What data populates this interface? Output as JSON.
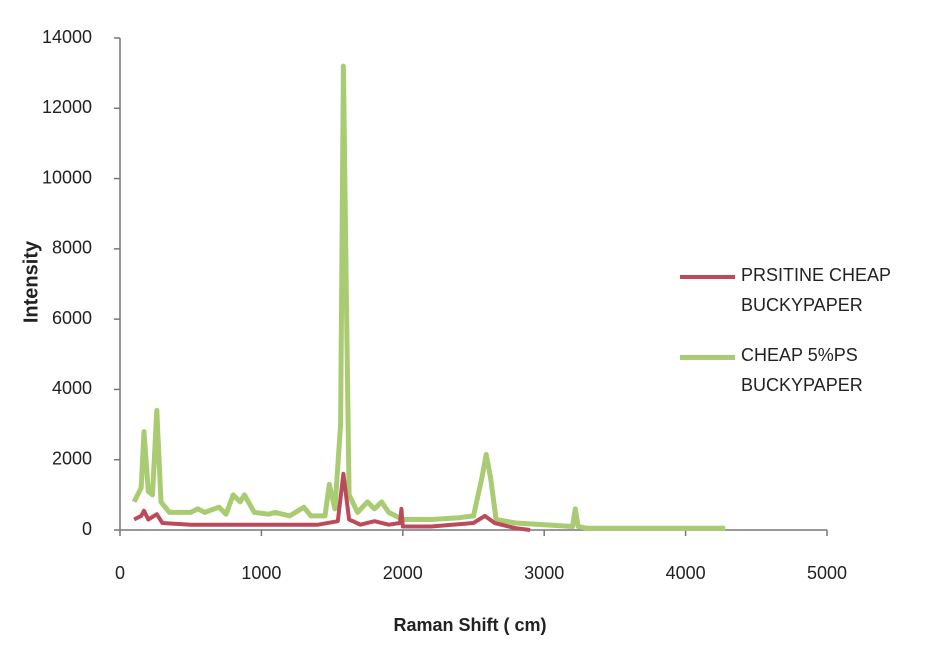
{
  "chart_data": {
    "type": "line",
    "xlabel": "Raman Shift ( cm)",
    "ylabel": "Intensity",
    "xlim": [
      0,
      5000
    ],
    "xticks": [
      0,
      1000,
      2000,
      3000,
      4000,
      5000
    ],
    "ylim": [
      0,
      14000
    ],
    "yticks": [
      0,
      2000,
      4000,
      6000,
      8000,
      10000,
      12000,
      14000
    ],
    "grid": false,
    "legend": "right",
    "series": [
      {
        "name": "PRSITINE CHEAP BUCKYPAPER",
        "color": "#bb4a5b",
        "x": [
          100,
          150,
          170,
          200,
          260,
          300,
          500,
          1000,
          1400,
          1540,
          1580,
          1620,
          1700,
          1800,
          1900,
          1980,
          1990,
          2000,
          2200,
          2500,
          2580,
          2650,
          2800,
          2900
        ],
        "values": [
          300,
          400,
          550,
          300,
          450,
          200,
          150,
          150,
          150,
          250,
          1600,
          300,
          150,
          250,
          150,
          200,
          600,
          100,
          100,
          200,
          400,
          200,
          50,
          0
        ]
      },
      {
        "name": "CHEAP 5%PS BUCKYPAPER",
        "color": "#a9cc72",
        "x": [
          100,
          150,
          170,
          200,
          230,
          260,
          290,
          350,
          500,
          550,
          600,
          700,
          750,
          800,
          850,
          880,
          950,
          1050,
          1100,
          1200,
          1300,
          1350,
          1450,
          1480,
          1520,
          1560,
          1580,
          1600,
          1620,
          1680,
          1750,
          1800,
          1850,
          1900,
          2000,
          2200,
          2400,
          2500,
          2560,
          2590,
          2620,
          2660,
          2800,
          3000,
          3200,
          3220,
          3240,
          3300,
          3500,
          4000,
          4280
        ],
        "values": [
          800,
          1200,
          2800,
          1100,
          1000,
          3400,
          800,
          500,
          500,
          600,
          500,
          650,
          450,
          1000,
          800,
          1000,
          500,
          450,
          500,
          400,
          650,
          400,
          400,
          1300,
          600,
          3000,
          13200,
          7000,
          1000,
          500,
          800,
          600,
          800,
          500,
          300,
          300,
          350,
          400,
          1500,
          2150,
          1500,
          300,
          200,
          150,
          100,
          600,
          100,
          50,
          50,
          50,
          50
        ]
      }
    ]
  }
}
